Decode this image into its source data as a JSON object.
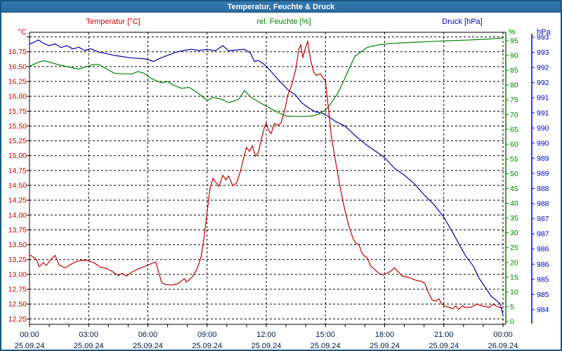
{
  "window": {
    "title": "Temperatur, Feuchte & Druck"
  },
  "colors": {
    "frame_border": "#1A5580",
    "title_bar_top": "#3579B0",
    "title_bar_bottom": "#2B6A9C",
    "title_text": "#FFFFFF",
    "grid": "#000000",
    "temperature": "#CC0000",
    "temperature_line": "#C00000",
    "humidity": "#008000",
    "pressure_line": "#0000A0",
    "pressure_label": "#0000CC",
    "time_label": "#001A4D"
  },
  "legend": {
    "temperature": "Temperatur [°C]",
    "humidity": "rel. Feuchte [%]",
    "pressure": "Druck [hPa]"
  },
  "chart_data": {
    "type": "line",
    "title": "Temperatur, Feuchte & Druck",
    "grid": true,
    "x_axis": {
      "hours_total": 24,
      "major_step_hours": 3,
      "minor_step_hours": 1,
      "ticks": [
        {
          "time": "00:00",
          "date": "25.09.24"
        },
        {
          "time": "03:00",
          "date": "25.09.24"
        },
        {
          "time": "06:00",
          "date": "25.09.24"
        },
        {
          "time": "09:00",
          "date": "25.09.24"
        },
        {
          "time": "12:00",
          "date": "25.09.24"
        },
        {
          "time": "15:00",
          "date": "25.09.24"
        },
        {
          "time": "18:00",
          "date": "25.09.24"
        },
        {
          "time": "21:00",
          "date": "25.09.24"
        },
        {
          "time": "00:00",
          "date": "26.09.24"
        }
      ]
    },
    "axes": {
      "temperature": {
        "header": "°C",
        "grid_min": 12.25,
        "grid_max": 17.0,
        "step": 0.25,
        "first_label_value": 16.75,
        "tick_labels": [
          "16,75",
          "16,50",
          "16,25",
          "16,00",
          "15,75",
          "15,50",
          "15,25",
          "15,00",
          "14,75",
          "14,50",
          "14,25",
          "14,00",
          "13,75",
          "13,50",
          "13,25",
          "13,00",
          "12,75",
          "12,50",
          "12,25"
        ]
      },
      "humidity": {
        "header": "%",
        "label_max": 95,
        "label_min": 0,
        "step": 5,
        "tick_labels": [
          "95",
          "90",
          "85",
          "80",
          "75",
          "70",
          "65",
          "60",
          "55",
          "50",
          "45",
          "40",
          "35",
          "30",
          "25",
          "20",
          "15",
          "10",
          "5",
          "0"
        ]
      },
      "pressure": {
        "header": "hPa",
        "top_tick_value": 993.5,
        "tick_step": 0.5,
        "tick_labels": [
          "993",
          "993",
          "992",
          "992",
          "991",
          "991",
          "990",
          "990",
          "989",
          "989",
          "988",
          "988",
          "987",
          "987",
          "986",
          "986",
          "985",
          "985",
          "984"
        ]
      }
    },
    "series": [
      {
        "name": "Druck [hPa]",
        "axis": "pressure",
        "color": "#0000A0",
        "points": [
          [
            0,
            993.27
          ],
          [
            0.25,
            993.34
          ],
          [
            0.45,
            993.41
          ],
          [
            0.7,
            993.3
          ],
          [
            1,
            993.22
          ],
          [
            1.3,
            993.28
          ],
          [
            1.6,
            993.16
          ],
          [
            1.9,
            993.22
          ],
          [
            2.2,
            993.11
          ],
          [
            2.5,
            993.17
          ],
          [
            2.8,
            993.06
          ],
          [
            3.1,
            993.12
          ],
          [
            3.5,
            993.01
          ],
          [
            3.9,
            992.96
          ],
          [
            4.3,
            992.9
          ],
          [
            4.7,
            992.86
          ],
          [
            5.1,
            992.82
          ],
          [
            5.5,
            992.8
          ],
          [
            5.9,
            992.78
          ],
          [
            6.3,
            992.7
          ],
          [
            6.6,
            992.8
          ],
          [
            7,
            992.9
          ],
          [
            7.4,
            993
          ],
          [
            7.8,
            993.06
          ],
          [
            8.2,
            993.1
          ],
          [
            8.6,
            993.06
          ],
          [
            9,
            993.1
          ],
          [
            9.4,
            993.05
          ],
          [
            9.8,
            993.22
          ],
          [
            10.1,
            993.05
          ],
          [
            10.5,
            993.08
          ],
          [
            10.9,
            993.1
          ],
          [
            11.2,
            992.98
          ],
          [
            11.4,
            992.7
          ],
          [
            11.6,
            992.73
          ],
          [
            11.9,
            992.6
          ],
          [
            12.2,
            992.4
          ],
          [
            12.4,
            992.25
          ],
          [
            12.75,
            992
          ],
          [
            13.1,
            991.76
          ],
          [
            13.5,
            991.58
          ],
          [
            13.8,
            991.33
          ],
          [
            14.2,
            991.14
          ],
          [
            14.5,
            991.03
          ],
          [
            14.8,
            991
          ],
          [
            15.1,
            990.9
          ],
          [
            15.5,
            990.72
          ],
          [
            16,
            990.56
          ],
          [
            16.5,
            990.25
          ],
          [
            17,
            989.98
          ],
          [
            17.5,
            989.75
          ],
          [
            18,
            989.52
          ],
          [
            18.5,
            989.17
          ],
          [
            19,
            988.94
          ],
          [
            19.5,
            988.66
          ],
          [
            20,
            988.29
          ],
          [
            20.5,
            987.97
          ],
          [
            21,
            987.55
          ],
          [
            21.4,
            987.1
          ],
          [
            21.8,
            986.63
          ],
          [
            22.1,
            986.28
          ],
          [
            22.5,
            985.93
          ],
          [
            22.8,
            985.52
          ],
          [
            23.1,
            985.24
          ],
          [
            23.4,
            984.94
          ],
          [
            23.7,
            984.78
          ],
          [
            23.85,
            984.7
          ],
          [
            23.95,
            984.45
          ],
          [
            24,
            984.31
          ]
        ]
      },
      {
        "name": "rel. Feuchte [%]",
        "axis": "humidity",
        "color": "#008000",
        "points": [
          [
            0,
            86.3
          ],
          [
            0.4,
            87.6
          ],
          [
            0.7,
            88.2
          ],
          [
            1,
            87.8
          ],
          [
            1.5,
            86.8
          ],
          [
            2,
            86.1
          ],
          [
            2.5,
            85.4
          ],
          [
            2.8,
            86
          ],
          [
            3.2,
            86.9
          ],
          [
            3.5,
            87
          ],
          [
            3.9,
            85.5
          ],
          [
            4.3,
            84
          ],
          [
            4.7,
            83.8
          ],
          [
            5.2,
            83.8
          ],
          [
            5.5,
            84.6
          ],
          [
            5.8,
            84
          ],
          [
            6.1,
            82.5
          ],
          [
            6.4,
            81.5
          ],
          [
            6.7,
            80.8
          ],
          [
            7,
            81.2
          ],
          [
            7.3,
            80
          ],
          [
            7.7,
            78.9
          ],
          [
            8.1,
            79.2
          ],
          [
            8.5,
            77.5
          ],
          [
            9,
            74.8
          ],
          [
            9.3,
            75.8
          ],
          [
            9.7,
            75.3
          ],
          [
            10.1,
            74.1
          ],
          [
            10.4,
            74.7
          ],
          [
            10.6,
            75.2
          ],
          [
            10.9,
            78.2
          ],
          [
            11.2,
            76
          ],
          [
            11.5,
            74.8
          ],
          [
            11.9,
            73.2
          ],
          [
            12.3,
            71.8
          ],
          [
            12.7,
            70.4
          ],
          [
            13,
            69.5
          ],
          [
            13.5,
            69.4
          ],
          [
            14,
            69.4
          ],
          [
            14.4,
            69.6
          ],
          [
            14.7,
            70.3
          ],
          [
            15,
            71.5
          ],
          [
            15.3,
            74
          ],
          [
            15.6,
            77
          ],
          [
            15.9,
            81
          ],
          [
            16.1,
            84
          ],
          [
            16.3,
            87
          ],
          [
            16.5,
            89.8
          ],
          [
            16.8,
            91.2
          ],
          [
            17.1,
            92.7
          ],
          [
            17.7,
            93.6
          ],
          [
            18.2,
            94
          ],
          [
            19,
            94.3
          ],
          [
            20.2,
            94.7
          ],
          [
            21.2,
            95
          ],
          [
            22.1,
            95.2
          ],
          [
            23.1,
            95.5
          ],
          [
            24,
            95.9
          ]
        ]
      },
      {
        "name": "Temperatur [°C]",
        "axis": "temperature",
        "color": "#C00000",
        "points": [
          [
            0,
            13.33
          ],
          [
            0.2,
            13.29
          ],
          [
            0.35,
            13.25
          ],
          [
            0.5,
            13.13
          ],
          [
            0.7,
            13.2
          ],
          [
            0.85,
            13.15
          ],
          [
            1.1,
            13.26
          ],
          [
            1.3,
            13.32
          ],
          [
            1.5,
            13.16
          ],
          [
            1.8,
            13.11
          ],
          [
            2.1,
            13.17
          ],
          [
            2.4,
            13.22
          ],
          [
            2.7,
            13.24
          ],
          [
            3,
            13.23
          ],
          [
            3.3,
            13.19
          ],
          [
            3.6,
            13.12
          ],
          [
            3.9,
            13.1
          ],
          [
            4.2,
            13.05
          ],
          [
            4.5,
            12.98
          ],
          [
            4.7,
            13.02
          ],
          [
            4.9,
            12.97
          ],
          [
            5.2,
            13.04
          ],
          [
            5.5,
            13.09
          ],
          [
            5.8,
            13.13
          ],
          [
            6.1,
            13.17
          ],
          [
            6.4,
            13.21
          ],
          [
            6.55,
            13.03
          ],
          [
            6.7,
            12.86
          ],
          [
            6.9,
            12.83
          ],
          [
            7.2,
            12.82
          ],
          [
            7.5,
            12.84
          ],
          [
            7.7,
            12.89
          ],
          [
            7.85,
            12.93
          ],
          [
            7.95,
            12.87
          ],
          [
            8.1,
            12.91
          ],
          [
            8.3,
            12.98
          ],
          [
            8.5,
            13.1
          ],
          [
            8.7,
            13.3
          ],
          [
            8.85,
            13.62
          ],
          [
            9,
            14.05
          ],
          [
            9.15,
            14.45
          ],
          [
            9.3,
            14.62
          ],
          [
            9.45,
            14.55
          ],
          [
            9.6,
            14.48
          ],
          [
            9.8,
            14.67
          ],
          [
            9.95,
            14.59
          ],
          [
            10.1,
            14.66
          ],
          [
            10.3,
            14.49
          ],
          [
            10.5,
            14.54
          ],
          [
            10.7,
            14.75
          ],
          [
            10.9,
            15.02
          ],
          [
            11,
            15.14
          ],
          [
            11.15,
            15.07
          ],
          [
            11.3,
            15.17
          ],
          [
            11.45,
            14.99
          ],
          [
            11.6,
            15.05
          ],
          [
            11.75,
            15.28
          ],
          [
            11.9,
            15.47
          ],
          [
            12,
            15.55
          ],
          [
            12.1,
            15.44
          ],
          [
            12.25,
            15.37
          ],
          [
            12.4,
            15.54
          ],
          [
            12.6,
            15.51
          ],
          [
            12.75,
            15.55
          ],
          [
            12.95,
            15.79
          ],
          [
            13.1,
            16.03
          ],
          [
            13.3,
            16.2
          ],
          [
            13.5,
            16.46
          ],
          [
            13.65,
            16.79
          ],
          [
            13.75,
            16.87
          ],
          [
            13.85,
            16.65
          ],
          [
            14,
            16.83
          ],
          [
            14.1,
            16.93
          ],
          [
            14.25,
            16.61
          ],
          [
            14.4,
            16.41
          ],
          [
            14.55,
            16.35
          ],
          [
            14.75,
            16.38
          ],
          [
            14.9,
            16.3
          ],
          [
            15,
            16.26
          ],
          [
            15.15,
            15.79
          ],
          [
            15.3,
            15.32
          ],
          [
            15.5,
            14.93
          ],
          [
            15.7,
            14.55
          ],
          [
            15.85,
            14.3
          ],
          [
            16,
            14.06
          ],
          [
            16.2,
            13.8
          ],
          [
            16.4,
            13.6
          ],
          [
            16.55,
            13.52
          ],
          [
            16.7,
            13.5
          ],
          [
            16.85,
            13.36
          ],
          [
            17,
            13.3
          ],
          [
            17.1,
            13.29
          ],
          [
            17.3,
            13.14
          ],
          [
            17.5,
            13.08
          ],
          [
            17.7,
            13.02
          ],
          [
            17.9,
            12.99
          ],
          [
            18.05,
            13.01
          ],
          [
            18.3,
            13.05
          ],
          [
            18.5,
            13.11
          ],
          [
            18.7,
            13.04
          ],
          [
            18.9,
            12.97
          ],
          [
            19.2,
            12.95
          ],
          [
            19.6,
            12.9
          ],
          [
            19.9,
            12.88
          ],
          [
            20.05,
            12.84
          ],
          [
            20.2,
            12.71
          ],
          [
            20.4,
            12.57
          ],
          [
            20.6,
            12.55
          ],
          [
            20.75,
            12.59
          ],
          [
            20.9,
            12.5
          ],
          [
            21.1,
            12.46
          ],
          [
            21.3,
            12.44
          ],
          [
            21.45,
            12.42
          ],
          [
            21.6,
            12.47
          ],
          [
            21.75,
            12.41
          ],
          [
            21.95,
            12.47
          ],
          [
            22.1,
            12.44
          ],
          [
            22.4,
            12.45
          ],
          [
            22.7,
            12.5
          ],
          [
            22.9,
            12.47
          ],
          [
            23.1,
            12.46
          ],
          [
            23.3,
            12.44
          ],
          [
            23.5,
            12.5
          ],
          [
            23.7,
            12.46
          ],
          [
            23.85,
            12.44
          ],
          [
            24,
            12.43
          ]
        ]
      }
    ]
  }
}
